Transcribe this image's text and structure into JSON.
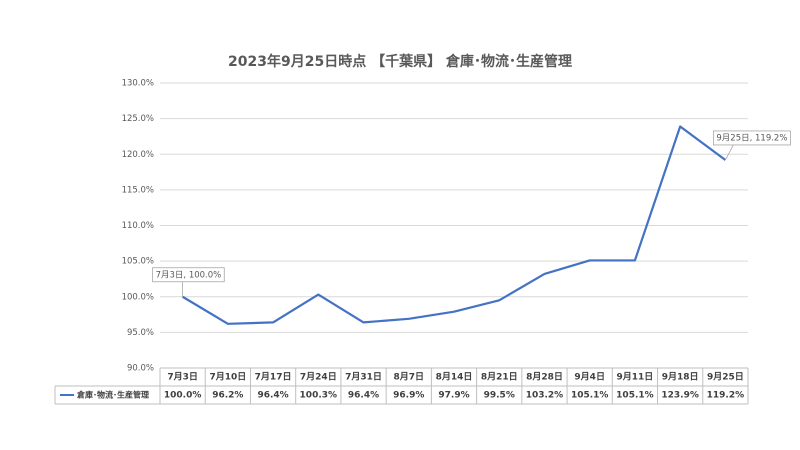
{
  "chart_data": {
    "type": "line",
    "title": "2023年9月25日時点 【千葉県】 倉庫･物流･生産管理",
    "categories": [
      "7月3日",
      "7月10日",
      "7月17日",
      "7月24日",
      "7月31日",
      "8月7日",
      "8月14日",
      "8月21日",
      "8月28日",
      "9月4日",
      "9月11日",
      "9月18日",
      "9月25日"
    ],
    "series": [
      {
        "name": "倉庫･物流･生産管理",
        "color": "#4472c4",
        "values": [
          100.0,
          96.2,
          96.4,
          100.3,
          96.4,
          96.9,
          97.9,
          99.5,
          103.2,
          105.1,
          105.1,
          123.9,
          119.2
        ],
        "value_labels": [
          "100.0%",
          "96.2%",
          "96.4%",
          "100.3%",
          "96.4%",
          "96.9%",
          "97.9%",
          "99.5%",
          "103.2%",
          "105.1%",
          "105.1%",
          "123.9%",
          "119.2%"
        ]
      }
    ],
    "ylim": [
      90,
      130
    ],
    "yticks": [
      {
        "value": 90,
        "label": "90.0%"
      },
      {
        "value": 95,
        "label": "95.0%"
      },
      {
        "value": 100,
        "label": "100.0%"
      },
      {
        "value": 105,
        "label": "105.0%"
      },
      {
        "value": 110,
        "label": "110.0%"
      },
      {
        "value": 115,
        "label": "115.0%"
      },
      {
        "value": 120,
        "label": "120.0%"
      },
      {
        "value": 125,
        "label": "125.0%"
      },
      {
        "value": 130,
        "label": "130.0%"
      }
    ],
    "grid": true,
    "annotations": [
      "7月3日, 100.0%",
      "9月25日, 119.2%"
    ]
  }
}
